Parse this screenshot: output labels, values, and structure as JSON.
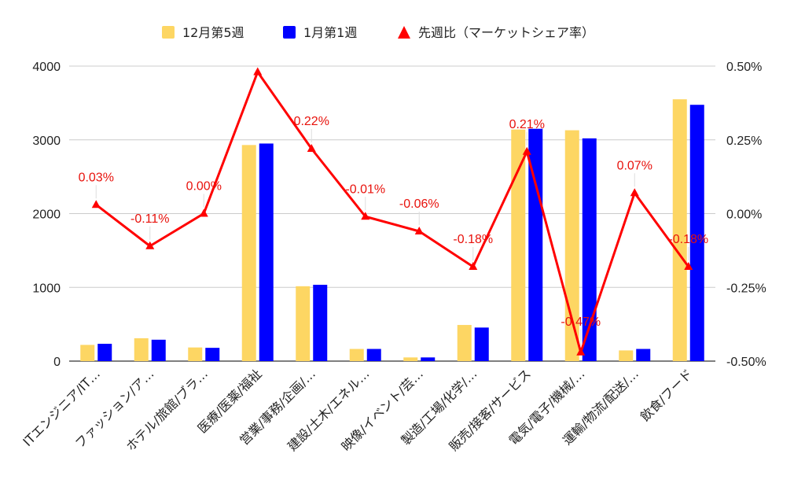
{
  "chart_data": {
    "type": "bar",
    "categories": [
      "ITエンジニア/IT…",
      "ファッション/ア…",
      "ホテル/旅館/ブラ…",
      "医療/医薬/福祉",
      "営業/事務/企画/…",
      "建設/土木/エネル…",
      "映像/イベント/芸…",
      "製造/工場/化学/…",
      "販売/接客/サービス",
      "電気/電子/機械/…",
      "運輸/物流/配送/…",
      "飲食/フード"
    ],
    "series": [
      {
        "name": "12月第5週",
        "type": "bar",
        "axis": "left",
        "color": "#fdd663",
        "values": [
          220,
          310,
          185,
          2930,
          1015,
          165,
          50,
          490,
          3140,
          3130,
          145,
          3550
        ]
      },
      {
        "name": "1月第1週",
        "type": "bar",
        "axis": "left",
        "color": "#0000ff",
        "values": [
          235,
          290,
          180,
          2950,
          1035,
          165,
          50,
          455,
          3150,
          3020,
          165,
          3475
        ]
      },
      {
        "name": "先週比（マーケットシェア率）",
        "type": "line",
        "axis": "right",
        "color": "#ff0000",
        "values": [
          0.03,
          -0.11,
          0.0,
          0.48,
          0.22,
          -0.01,
          -0.06,
          -0.18,
          0.21,
          -0.47,
          0.07,
          -0.18
        ]
      }
    ],
    "data_labels": [
      "0.03%",
      "-0.11%",
      "0.00%",
      "",
      "0.22%",
      "-0.01%",
      "-0.06%",
      "-0.18%",
      "0.21%",
      "-0.47%",
      "0.07%",
      "-0.18%"
    ],
    "y_left": {
      "min": 0,
      "max": 4000,
      "ticks": [
        "0",
        "1000",
        "2000",
        "3000",
        "4000"
      ]
    },
    "y_right": {
      "min": -0.5,
      "max": 0.5,
      "ticks": [
        "-0.50%",
        "-0.25%",
        "0.00%",
        "0.25%",
        "0.50%"
      ]
    },
    "legend_position": "top",
    "grid": true
  }
}
